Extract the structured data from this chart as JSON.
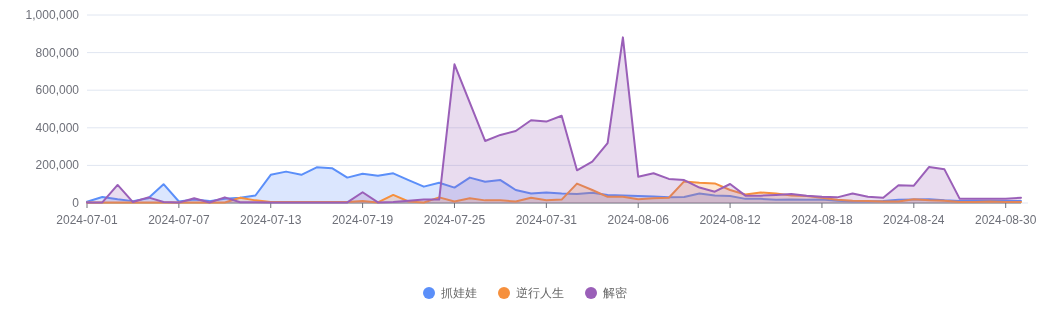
{
  "chart_data": {
    "type": "area",
    "x": [
      "2024-07-01",
      "2024-07-02",
      "2024-07-03",
      "2024-07-04",
      "2024-07-05",
      "2024-07-06",
      "2024-07-07",
      "2024-07-08",
      "2024-07-09",
      "2024-07-10",
      "2024-07-11",
      "2024-07-12",
      "2024-07-13",
      "2024-07-14",
      "2024-07-15",
      "2024-07-16",
      "2024-07-17",
      "2024-07-18",
      "2024-07-19",
      "2024-07-20",
      "2024-07-21",
      "2024-07-22",
      "2024-07-23",
      "2024-07-24",
      "2024-07-25",
      "2024-07-26",
      "2024-07-27",
      "2024-07-28",
      "2024-07-29",
      "2024-07-30",
      "2024-07-31",
      "2024-08-01",
      "2024-08-02",
      "2024-08-03",
      "2024-08-04",
      "2024-08-05",
      "2024-08-06",
      "2024-08-07",
      "2024-08-08",
      "2024-08-09",
      "2024-08-10",
      "2024-08-11",
      "2024-08-12",
      "2024-08-13",
      "2024-08-14",
      "2024-08-15",
      "2024-08-16",
      "2024-08-17",
      "2024-08-18",
      "2024-08-19",
      "2024-08-20",
      "2024-08-21",
      "2024-08-22",
      "2024-08-23",
      "2024-08-24",
      "2024-08-25",
      "2024-08-26",
      "2024-08-27",
      "2024-08-28",
      "2024-08-29",
      "2024-08-30",
      "2024-08-31"
    ],
    "series": [
      {
        "name": "抓娃娃",
        "color": "#5b8ff9",
        "values": [
          7000,
          32000,
          20000,
          10000,
          25000,
          100000,
          8000,
          18000,
          10000,
          22000,
          28000,
          40000,
          150000,
          167000,
          150000,
          190000,
          185000,
          135000,
          156000,
          145000,
          158000,
          122000,
          87000,
          108000,
          82000,
          135000,
          113000,
          122000,
          69000,
          51000,
          56000,
          51000,
          48000,
          55000,
          43000,
          40000,
          37000,
          35000,
          30000,
          32000,
          51000,
          40000,
          37000,
          22000,
          22000,
          17000,
          18000,
          17000,
          18000,
          12000,
          8000,
          8000,
          10000,
          17000,
          18000,
          20000,
          14000,
          10000,
          12000,
          12000,
          10000,
          10000
        ]
      },
      {
        "name": "逆行人生",
        "color": "#f6903d",
        "values": [
          3000,
          3000,
          3000,
          3000,
          3000,
          3000,
          3000,
          3000,
          3000,
          3000,
          28000,
          14000,
          5000,
          5000,
          5000,
          5000,
          5000,
          5000,
          10000,
          3000,
          43000,
          8000,
          3000,
          30000,
          8000,
          25000,
          14000,
          14000,
          8000,
          28000,
          15000,
          18000,
          103000,
          69000,
          33000,
          33000,
          20000,
          25000,
          28000,
          115000,
          108000,
          104000,
          69000,
          45000,
          56000,
          51000,
          40000,
          37000,
          28000,
          17000,
          12000,
          10000,
          8000,
          8000,
          20000,
          14000,
          12000,
          5000,
          5000,
          8000,
          5000,
          5000
        ]
      },
      {
        "name": "解密",
        "color": "#9a5fb8",
        "values": [
          3000,
          3000,
          96000,
          5000,
          30000,
          5000,
          2000,
          25000,
          3000,
          30000,
          4000,
          4000,
          2000,
          2000,
          2000,
          2000,
          3000,
          3000,
          57000,
          3000,
          5000,
          12000,
          18000,
          18000,
          738000,
          534000,
          330000,
          362000,
          383000,
          440000,
          433000,
          464000,
          174000,
          220000,
          318000,
          881000,
          140000,
          158000,
          128000,
          122000,
          82000,
          60000,
          101000,
          39000,
          39000,
          43000,
          48000,
          39000,
          33000,
          30000,
          51000,
          33000,
          28000,
          94000,
          92000,
          192000,
          179000,
          22000,
          22000,
          22000,
          22000,
          28000
        ]
      }
    ],
    "xlim": [
      "2024-07-01",
      "2024-08-31"
    ],
    "xticks": [
      "2024-07-01",
      "2024-07-07",
      "2024-07-13",
      "2024-07-19",
      "2024-07-25",
      "2024-07-31",
      "2024-08-06",
      "2024-08-12",
      "2024-08-18",
      "2024-08-24",
      "2024-08-30"
    ],
    "ylim": [
      0,
      1000000
    ],
    "yticks": [
      0,
      {
        "value": 200000,
        "label": "200,000"
      },
      {
        "value": 400000,
        "label": "400,000"
      },
      {
        "value": 600000,
        "label": "600,000"
      },
      {
        "value": 800000,
        "label": "800,000"
      },
      {
        "value": 1000000,
        "label": "1,000,000"
      }
    ],
    "grid": "y",
    "legend": "bottom"
  }
}
